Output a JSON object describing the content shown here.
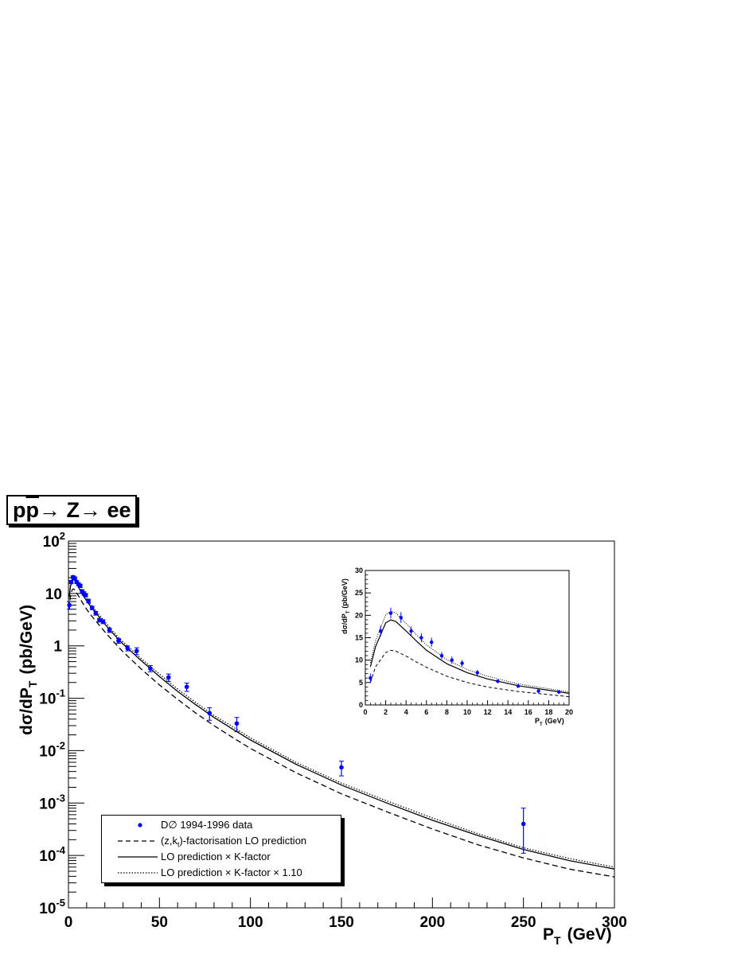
{
  "title": {
    "text_pp": "pp",
    "text_rest": "→ Z→ ee"
  },
  "legend": {
    "entries": [
      {
        "label": "D∅ 1994-1996 data",
        "style": "points",
        "color": "#0000ff"
      },
      {
        "label": "(z,k",
        "label_sub": "t",
        "label_after": ")-factorisation LO prediction",
        "style": "dashed",
        "color": "#000000"
      },
      {
        "label": "LO prediction × K-factor",
        "style": "solid",
        "color": "#000000"
      },
      {
        "label": "LO prediction × K-factor × 1.10",
        "style": "dotted",
        "color": "#000000"
      }
    ]
  },
  "chart_data": [
    {
      "type": "scatter",
      "name": "main",
      "xlabel": "P",
      "xlabel_sub": "T",
      "xlabel_unit": "(GeV)",
      "ylabel": "dσ/dP",
      "ylabel_sub": "T",
      "ylabel_unit": "(pb/GeV)",
      "xlim": [
        0,
        300
      ],
      "ylim": [
        1e-05,
        100
      ],
      "yscale": "log",
      "x_ticks": [
        "0",
        "50",
        "100",
        "150",
        "200",
        "250",
        "300"
      ],
      "y_ticks": [
        {
          "base": "10",
          "exp": "-5"
        },
        {
          "base": "10",
          "exp": "-4"
        },
        {
          "base": "10",
          "exp": "-3"
        },
        {
          "base": "10",
          "exp": "-2"
        },
        {
          "base": "10",
          "exp": "-1"
        },
        {
          "base": "1",
          "exp": ""
        },
        {
          "base": "10",
          "exp": ""
        },
        {
          "base": "10",
          "exp": "2"
        }
      ],
      "data_points": {
        "x": [
          0.5,
          1.5,
          2.5,
          3.5,
          4.5,
          5.5,
          6.5,
          7.5,
          8.5,
          9.5,
          11,
          13,
          15,
          17,
          19,
          22.5,
          27.5,
          32.5,
          37.5,
          45,
          55,
          65,
          77.5,
          92.5,
          150,
          250
        ],
        "y": [
          6,
          16.5,
          20.5,
          19.5,
          16.5,
          15,
          14,
          11,
          10,
          9.3,
          7.2,
          5.3,
          4.2,
          3.1,
          2.9,
          2.0,
          1.25,
          0.9,
          0.8,
          0.37,
          0.25,
          0.165,
          0.052,
          0.033,
          0.0048,
          0.0004
        ],
        "yerr_low": [
          1,
          1.2,
          1.2,
          1.2,
          1,
          1,
          1,
          0.8,
          0.8,
          0.7,
          0.6,
          0.4,
          0.35,
          0.25,
          0.25,
          0.2,
          0.13,
          0.1,
          0.12,
          0.05,
          0.04,
          0.03,
          0.014,
          0.01,
          0.0015,
          0.00029
        ],
        "yerr_high": [
          1,
          1.2,
          1.2,
          1.2,
          1,
          1,
          1,
          0.8,
          0.8,
          0.7,
          0.6,
          0.4,
          0.35,
          0.25,
          0.25,
          0.2,
          0.13,
          0.1,
          0.12,
          0.05,
          0.04,
          0.03,
          0.014,
          0.01,
          0.0015,
          0.0004
        ]
      },
      "curves": {
        "x": [
          0.5,
          1,
          2,
          2.5,
          3,
          4,
          5,
          6,
          8,
          10,
          12,
          15,
          20,
          25,
          30,
          40,
          50,
          60,
          70,
          80,
          90,
          100,
          125,
          150,
          175,
          200,
          225,
          250,
          275,
          300
        ],
        "solid": [
          8.5,
          13,
          18.3,
          19,
          18.6,
          16.5,
          14.3,
          12.2,
          9.2,
          7.2,
          5.8,
          4.3,
          2.6,
          1.65,
          1.08,
          0.52,
          0.26,
          0.135,
          0.075,
          0.043,
          0.026,
          0.016,
          0.0055,
          0.0022,
          0.001,
          0.00047,
          0.00024,
          0.00013,
          8e-05,
          5.5e-05
        ],
        "dashed": [
          5,
          8.5,
          11.7,
          12.2,
          12.0,
          10.9,
          9.6,
          8.4,
          6.4,
          5.0,
          4.0,
          3.0,
          1.85,
          1.18,
          0.77,
          0.36,
          0.18,
          0.095,
          0.052,
          0.03,
          0.018,
          0.011,
          0.0038,
          0.0015,
          0.00068,
          0.00032,
          0.00016,
          9e-05,
          5.5e-05,
          3.9e-05
        ],
        "dotted": [
          9.4,
          14.3,
          20.1,
          20.9,
          20.5,
          18.2,
          15.7,
          13.4,
          10.1,
          7.9,
          6.4,
          4.7,
          2.9,
          1.8,
          1.19,
          0.57,
          0.29,
          0.15,
          0.083,
          0.047,
          0.029,
          0.0176,
          0.006,
          0.0024,
          0.0011,
          0.00052,
          0.00026,
          0.00014,
          8.8e-05,
          6e-05
        ]
      }
    },
    {
      "type": "scatter",
      "name": "inset",
      "xlabel": "P",
      "xlabel_sub": "T",
      "xlabel_unit": "(GeV)",
      "ylabel": "dσ/dP",
      "ylabel_sub": "T",
      "ylabel_unit": "(pb/GeV)",
      "xlim": [
        0,
        20
      ],
      "ylim": [
        0,
        30
      ],
      "x_ticks": [
        "0",
        "2",
        "4",
        "6",
        "8",
        "10",
        "12",
        "14",
        "16",
        "18",
        "20"
      ],
      "y_ticks": [
        "0",
        "5",
        "10",
        "15",
        "20",
        "25",
        "30"
      ]
    }
  ]
}
